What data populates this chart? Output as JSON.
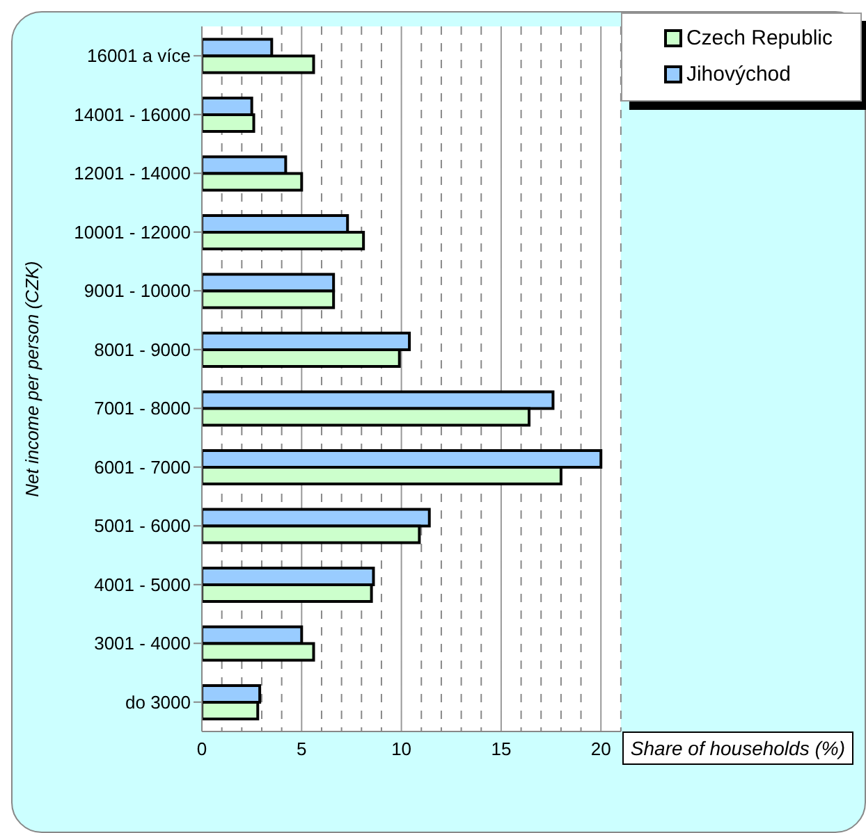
{
  "chart_data": {
    "type": "bar",
    "orientation": "horizontal",
    "xlabel": "Share of households (%)",
    "ylabel": "Net income per person (CZK)",
    "categories": [
      "16001 a více",
      "14001 - 16000",
      "12001 - 14000",
      "10001 - 12000",
      "9001 - 10000",
      "8001 - 9000",
      "7001 - 8000",
      "6001 - 7000",
      "5001 - 6000",
      "4001 - 5000",
      "3001 - 4000",
      "do 3000"
    ],
    "series": [
      {
        "name": "Jihovýchod",
        "color": "#99ccff",
        "values": [
          3.5,
          2.5,
          4.2,
          7.3,
          6.6,
          10.4,
          17.6,
          20.0,
          11.4,
          8.6,
          5.0,
          2.9
        ]
      },
      {
        "name": "Czech Republic",
        "color": "#ccffcc",
        "values": [
          5.6,
          2.6,
          5.0,
          8.1,
          6.6,
          9.9,
          16.4,
          18.0,
          10.9,
          8.5,
          5.6,
          2.8
        ]
      }
    ],
    "xlim": [
      0,
      21
    ],
    "xticks": [
      0,
      {
        "value": 1,
        "label": null
      },
      {
        "value": 2,
        "label": null
      },
      {
        "value": 3,
        "label": null
      },
      {
        "value": 4,
        "label": null
      },
      5,
      {
        "value": 6,
        "label": null
      },
      {
        "value": 7,
        "label": null
      },
      {
        "value": 8,
        "label": null
      },
      {
        "value": 9,
        "label": null
      },
      10,
      {
        "value": 11,
        "label": null
      },
      {
        "value": 12,
        "label": null
      },
      {
        "value": 13,
        "label": null
      },
      {
        "value": 14,
        "label": null
      },
      15,
      {
        "value": 16,
        "label": null
      },
      {
        "value": 17,
        "label": null
      },
      {
        "value": 18,
        "label": null
      },
      {
        "value": 19,
        "label": null
      },
      20,
      {
        "value": 21,
        "label": null
      }
    ],
    "grid": "x",
    "legend": "top right"
  }
}
